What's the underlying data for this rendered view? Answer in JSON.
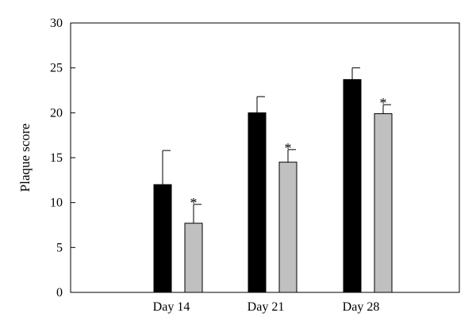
{
  "chart_data": {
    "type": "bar",
    "title": "",
    "xlabel": "",
    "ylabel": "Plaque score",
    "ylim": [
      0,
      30
    ],
    "yticks": [
      0,
      5,
      10,
      15,
      20,
      25,
      30
    ],
    "categories": [
      "Day 14",
      "Day 21",
      "Day 28"
    ],
    "series": [
      {
        "values": [
          12.0,
          20.0,
          23.7
        ],
        "errors": [
          3.8,
          1.8,
          1.3
        ],
        "color": "#000000",
        "significance": [
          "",
          "",
          ""
        ]
      },
      {
        "values": [
          7.7,
          14.5,
          19.9
        ],
        "errors": [
          2.1,
          1.4,
          1.0
        ],
        "color": "#c0c0c0",
        "significance": [
          "*",
          "*",
          "*"
        ]
      }
    ],
    "grid": false,
    "legend": "none"
  }
}
